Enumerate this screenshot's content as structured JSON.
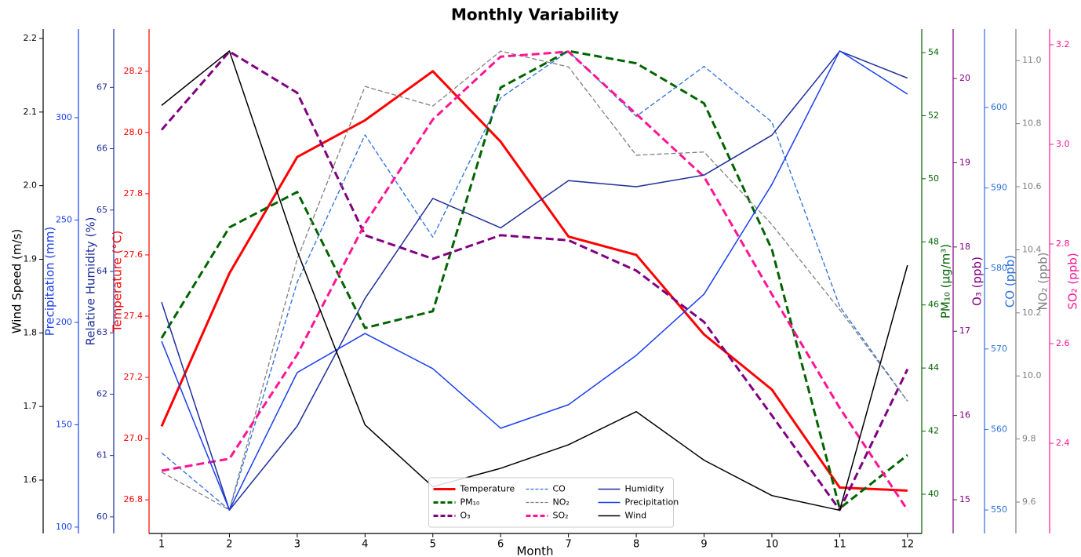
{
  "chart_data": {
    "type": "line",
    "title": "Monthly Variability",
    "xlabel": "Month",
    "x": [
      1,
      2,
      3,
      4,
      5,
      6,
      7,
      8,
      9,
      10,
      11,
      12
    ],
    "xlim": [
      0.815,
      12.21
    ],
    "xticks": [
      1,
      2,
      3,
      4,
      5,
      6,
      7,
      8,
      9,
      10,
      11,
      12
    ],
    "legend": "lower center",
    "y_axes": [
      {
        "label": "Wind Speed (m/s)",
        "color": "#000000",
        "side": "left",
        "ylim": [
          1.5275,
          2.2128
        ],
        "yticks": [
          1.6,
          1.7,
          1.8,
          1.9,
          {
            "value": 2.0,
            "label": "2.0"
          },
          2.1,
          2.2
        ]
      },
      {
        "label": "Precipitation (mm)",
        "color": "#1a3ff0",
        "side": "left",
        "ylim": [
          96.9,
          343.3
        ],
        "yticks": [
          100,
          150,
          200,
          250,
          300
        ]
      },
      {
        "label": "Relative Humidity (%)",
        "color": "#1f2f9a",
        "side": "left",
        "ylim": [
          59.73,
          67.95
        ],
        "yticks": [
          60,
          61,
          62,
          63,
          64,
          65,
          66,
          67
        ]
      },
      {
        "label": "Temperature (°C)",
        "color": "#ff0000",
        "side": "left",
        "ylim": [
          26.69,
          28.338
        ],
        "yticks": [
          26.8,
          {
            "value": 27.0,
            "label": "27.0"
          },
          27.2,
          27.4,
          27.6,
          27.8,
          {
            "value": 28.0,
            "label": "28.0"
          },
          28.2
        ]
      },
      {
        "label": "PM₁₀ (μg/m³)",
        "color": "#006400",
        "side": "right",
        "ylim": [
          38.756,
          54.746
        ],
        "yticks": [
          40,
          42,
          44,
          46,
          48,
          50,
          52,
          54
        ]
      },
      {
        "label": "O₃ (ppb)",
        "color": "#800080",
        "side": "right",
        "ylim": [
          14.6,
          20.587
        ],
        "yticks": [
          15,
          16,
          17,
          18,
          19,
          20
        ]
      },
      {
        "label": "CO (ppb)",
        "color": "#2a6fdb",
        "side": "right",
        "ylim": [
          547.08,
          609.75
        ],
        "yticks": [
          550,
          560,
          570,
          580,
          590,
          600
        ]
      },
      {
        "label": "NO₂ (ppb)",
        "color": "#808080",
        "side": "right",
        "ylim": [
          9.5005,
          11.1
        ],
        "yticks": [
          9.6,
          9.8,
          {
            "value": 10.0,
            "label": "10.0"
          },
          10.2,
          10.4,
          10.6,
          10.8,
          {
            "value": 11.0,
            "label": "11.0"
          }
        ]
      },
      {
        "label": "SO₂ (ppb)",
        "color": "#ff1493",
        "side": "right",
        "ylim": [
          2.219,
          3.2315
        ],
        "yticks": [
          2.4,
          2.6,
          2.8,
          {
            "value": 3.0,
            "label": "3.0"
          },
          3.2
        ]
      }
    ],
    "series": [
      {
        "name": "Temperature",
        "color": "#ff0000",
        "axis": 3,
        "linestyle": "-",
        "linewidth": 3,
        "values": [
          27.04,
          27.54,
          27.92,
          28.04,
          28.2,
          27.97,
          27.66,
          27.6,
          27.34,
          27.16,
          26.84,
          26.83
        ]
      },
      {
        "name": "PM₁₀",
        "color": "#006400",
        "axis": 4,
        "linestyle": "--",
        "linewidth": 3,
        "values": [
          44.95,
          48.46,
          49.58,
          45.27,
          45.8,
          52.89,
          54.05,
          53.66,
          52.39,
          47.76,
          39.55,
          41.24
        ]
      },
      {
        "name": "O₃",
        "color": "#800080",
        "axis": 5,
        "linestyle": "--",
        "linewidth": 3,
        "values": [
          19.39,
          20.32,
          19.83,
          18.14,
          17.86,
          18.14,
          18.08,
          17.72,
          17.11,
          16.0,
          14.88,
          16.55
        ]
      },
      {
        "name": "CO",
        "color": "#2a6fdb",
        "axis": 6,
        "linestyle": "--",
        "linewidth": 1.3,
        "values": [
          557.1,
          550,
          578.3,
          596.6,
          583.9,
          601.2,
          607.0,
          598.9,
          605.1,
          598.2,
          575.3,
          563.5
        ]
      },
      {
        "name": "NO₂",
        "color": "#808080",
        "axis": 7,
        "linestyle": "--",
        "linewidth": 1.3,
        "values": [
          9.695,
          9.575,
          10.371,
          10.918,
          10.856,
          11.03,
          10.98,
          10.7,
          10.71,
          10.48,
          10.21,
          9.92
        ]
      },
      {
        "name": "SO₂",
        "color": "#ff1493",
        "axis": 8,
        "linestyle": "--",
        "linewidth": 3,
        "values": [
          2.345,
          2.369,
          2.578,
          2.841,
          3.05,
          3.176,
          3.186,
          3.061,
          2.935,
          2.699,
          2.471,
          2.266
        ]
      },
      {
        "name": "Humidity",
        "color": "#1f2f9a",
        "axis": 2,
        "linestyle": "-",
        "linewidth": 1.5,
        "values": [
          63.5,
          60.11,
          61.48,
          63.56,
          65.19,
          64.71,
          65.48,
          65.38,
          65.57,
          66.22,
          67.59,
          67.15
        ]
      },
      {
        "name": "Precipitation",
        "color": "#1a3ff0",
        "axis": 1,
        "linestyle": "-",
        "linewidth": 1.5,
        "values": [
          190.8,
          108.4,
          175.5,
          194.6,
          177.4,
          148.3,
          159.8,
          183.9,
          213.8,
          267.4,
          332.6,
          311.5
        ]
      },
      {
        "name": "Wind",
        "color": "#000000",
        "axis": 0,
        "linestyle": "-",
        "linewidth": 1.5,
        "values": [
          2.109,
          2.183,
          1.911,
          1.675,
          1.591,
          1.616,
          1.648,
          1.693,
          1.627,
          1.579,
          1.559,
          1.892
        ]
      }
    ]
  }
}
